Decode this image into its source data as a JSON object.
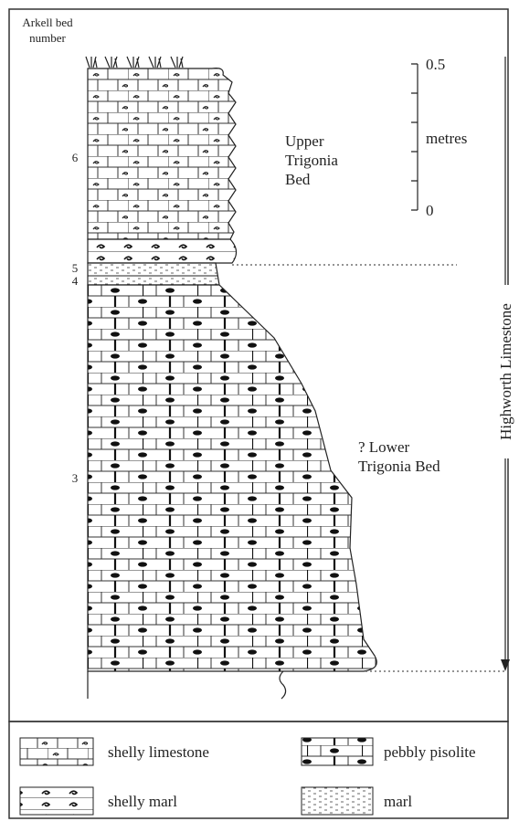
{
  "header": {
    "line1": "Arkell bed",
    "line2": "number"
  },
  "beds": [
    {
      "number": "6",
      "name": [
        "Upper",
        "Trigonia",
        "Bed"
      ]
    },
    {
      "number": "5"
    },
    {
      "number": "4"
    },
    {
      "number": "3",
      "name": [
        "? Lower",
        "Trigonia Bed"
      ]
    }
  ],
  "scale": {
    "top": "0.5",
    "unit": "metres",
    "bottom": "0"
  },
  "formation": "Highworth Limestone",
  "legend": [
    "shelly limestone",
    "pebbly pisolite",
    "shelly marl",
    "marl"
  ]
}
